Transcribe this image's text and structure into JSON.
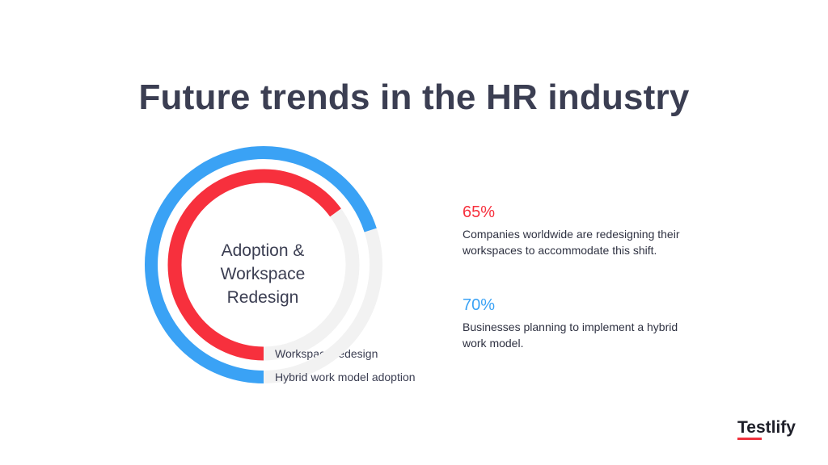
{
  "title": "Future trends in the HR industry",
  "chart_data": {
    "type": "pie",
    "style": "radial-bar",
    "center_label": "Adoption & Workspace Redesign",
    "series": [
      {
        "name": "Workspace redesign",
        "value": 65,
        "color": "#f7303d"
      },
      {
        "name": "Hybrid work model adoption",
        "value": 70,
        "color": "#3aa2f5"
      }
    ],
    "max": 100,
    "track_color": "#f2f2f2"
  },
  "stats": [
    {
      "value": "65%",
      "color": "#f7303d",
      "text": "Companies worldwide are redesigning their workspaces to accommodate this shift."
    },
    {
      "value": "70%",
      "color": "#3aa2f5",
      "text": "Businesses planning to implement a hybrid work model."
    }
  ],
  "logo": {
    "text": "Testlify",
    "accent": "#f0313d"
  }
}
